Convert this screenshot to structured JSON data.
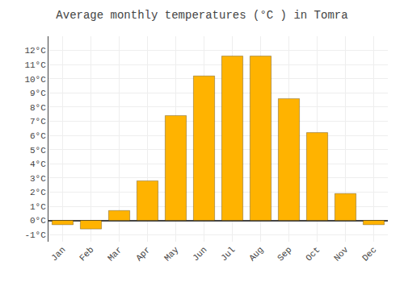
{
  "chart_data": {
    "type": "bar",
    "title": "Average monthly temperatures (°C ) in Tomra",
    "categories": [
      "Jan",
      "Feb",
      "Mar",
      "Apr",
      "May",
      "Jun",
      "Jul",
      "Aug",
      "Sep",
      "Oct",
      "Nov",
      "Dec"
    ],
    "values": [
      -0.3,
      -0.6,
      0.7,
      2.8,
      7.4,
      10.2,
      11.6,
      11.6,
      8.6,
      6.2,
      1.9,
      -0.3
    ],
    "color": "#FFB300",
    "ylim": [
      -1.5,
      13.0
    ],
    "yticks": [
      {
        "value": -1,
        "label": "-1°C"
      },
      {
        "value": 0,
        "label": "0°C"
      },
      {
        "value": 1,
        "label": "1°C"
      },
      {
        "value": 2,
        "label": "2°C"
      },
      {
        "value": 3,
        "label": "3°C"
      },
      {
        "value": 4,
        "label": "4°C"
      },
      {
        "value": 5,
        "label": "5°C"
      },
      {
        "value": 6,
        "label": "6°C"
      },
      {
        "value": 7,
        "label": "7°C"
      },
      {
        "value": 8,
        "label": "8°C"
      },
      {
        "value": 9,
        "label": "9°C"
      },
      {
        "value": 10,
        "label": "10°C"
      },
      {
        "value": 11,
        "label": "11°C"
      },
      {
        "value": 12,
        "label": "12°C"
      }
    ],
    "grid": true
  }
}
